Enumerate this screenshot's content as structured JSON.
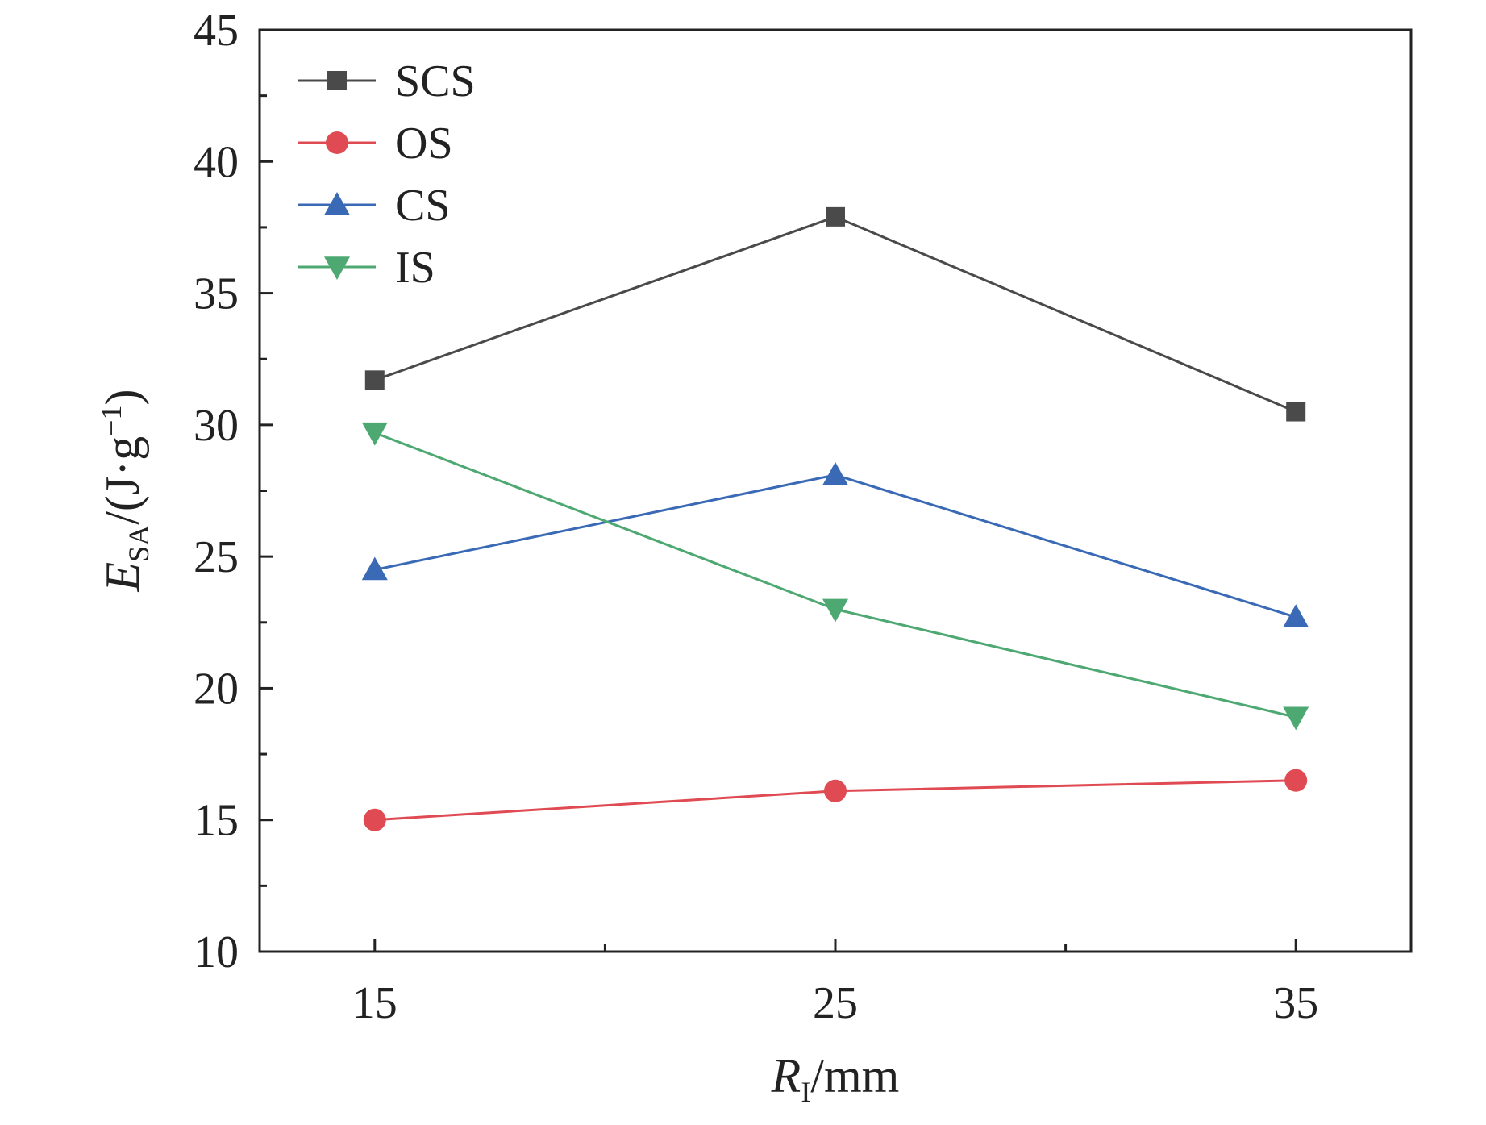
{
  "chart_data": {
    "type": "line",
    "x": [
      15,
      25,
      35
    ],
    "xlim": [
      12.5,
      37.5
    ],
    "ylim": [
      10,
      45
    ],
    "xticks": [
      15,
      25,
      35
    ],
    "yticks": [
      10,
      15,
      20,
      25,
      30,
      35,
      40,
      45
    ],
    "grid": false,
    "legend_position": "top-left",
    "xlabel": {
      "main": "R",
      "sub": "I",
      "unit": "/mm"
    },
    "ylabel": {
      "main": "E",
      "sub": "SA",
      "unit_prefix": "/(J·g",
      "unit_exp": "−1",
      "unit_suffix": ")"
    },
    "series": [
      {
        "name": "SCS",
        "values": [
          31.7,
          37.9,
          30.5
        ],
        "color": "#4a4a4a",
        "marker": "square"
      },
      {
        "name": "OS",
        "values": [
          15.0,
          16.1,
          16.5
        ],
        "color": "#e04b53",
        "marker": "circle"
      },
      {
        "name": "CS",
        "values": [
          24.5,
          28.1,
          22.7
        ],
        "color": "#3a6ab5",
        "marker": "triangle-up"
      },
      {
        "name": "IS",
        "values": [
          29.7,
          23.0,
          18.9
        ],
        "color": "#4ea872",
        "marker": "triangle-down"
      }
    ]
  }
}
